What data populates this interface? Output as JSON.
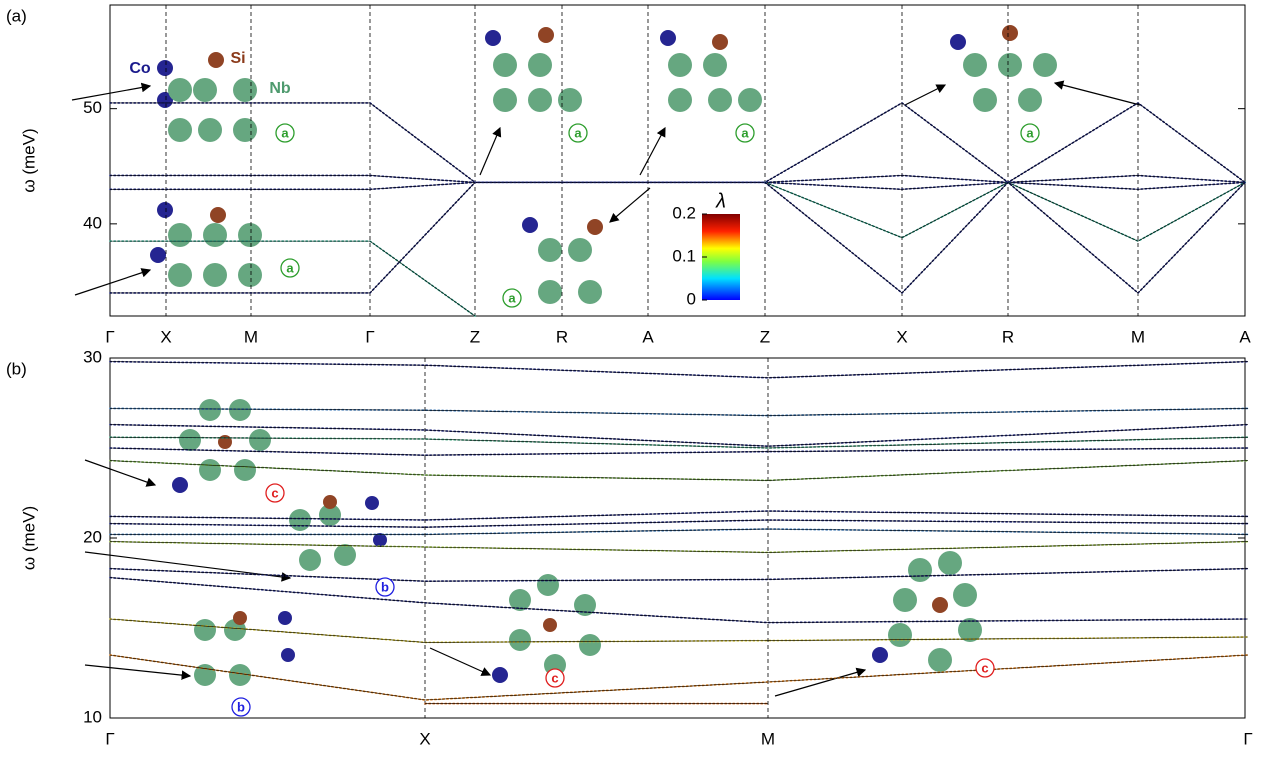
{
  "chart_data": [
    {
      "type": "line",
      "panel_label": "(a)",
      "ylabel": "ω (meV)",
      "categories": [
        "Γ",
        "X",
        "M",
        "Γ",
        "Z",
        "R",
        "A",
        "Z",
        "X",
        "R",
        "M",
        "A"
      ],
      "ylim": [
        32,
        59
      ],
      "yticks": [
        40,
        50
      ],
      "series": [
        {
          "color": "#1a237e",
          "values": [
            50.5,
            50.5,
            50.5,
            50.5,
            43.6,
            43.6,
            43.6,
            43.6,
            50.5,
            43.6,
            50.5,
            43.6
          ]
        },
        {
          "color": "#1a237e",
          "values": [
            44.2,
            44.2,
            44.2,
            44.2,
            43.6,
            43.6,
            43.6,
            43.6,
            44.2,
            43.6,
            44.2,
            43.6
          ]
        },
        {
          "color": "#1a237e",
          "values": [
            43.0,
            43.0,
            43.0,
            43.0,
            43.6,
            43.6,
            43.6,
            43.6,
            43.0,
            43.6,
            43.0,
            43.6
          ]
        },
        {
          "color": "#2aa58a",
          "values": [
            38.5,
            38.5,
            38.5,
            38.5,
            32,
            null,
            null,
            43.6,
            38.8,
            43.6,
            38.5,
            43.6
          ]
        },
        {
          "color": "#1a237e",
          "values": [
            34,
            34,
            34,
            34,
            43.6,
            null,
            null,
            43.6,
            34,
            43.6,
            34,
            43.6
          ]
        }
      ],
      "colorbar": {
        "label": "λ",
        "lim": [
          0,
          0.2
        ],
        "ticks": [
          0,
          0.1,
          0.2
        ]
      },
      "annotations": [
        {
          "text": "Co",
          "color": "#1a1a8c"
        },
        {
          "text": "Si",
          "color": "#8b3a1a"
        },
        {
          "text": "Nb",
          "color": "#4e9a6e"
        },
        {
          "text": "a",
          "color": "#2e9e2e"
        },
        {
          "text": "a",
          "color": "#2e9e2e"
        },
        {
          "text": "a",
          "color": "#2e9e2e"
        },
        {
          "text": "a",
          "color": "#2e9e2e"
        },
        {
          "text": "a",
          "color": "#2e9e2e"
        },
        {
          "text": "a",
          "color": "#2e9e2e"
        }
      ]
    },
    {
      "type": "line",
      "panel_label": "(b)",
      "ylabel": "ω (meV)",
      "categories": [
        "Γ",
        "X",
        "M",
        "Γ"
      ],
      "ylim": [
        10,
        30
      ],
      "yticks": [
        10,
        20,
        30
      ],
      "series": [
        {
          "color": "#1a237e",
          "values": [
            29.8,
            29.6,
            28.9,
            29.8
          ]
        },
        {
          "color": "#2b6cb0",
          "values": [
            27.2,
            27.1,
            26.8,
            27.2
          ]
        },
        {
          "color": "#1a237e",
          "values": [
            26.3,
            26.0,
            25.1,
            26.3
          ]
        },
        {
          "color": "#3aa07a",
          "values": [
            25.6,
            25.5,
            25.0,
            25.6
          ]
        },
        {
          "color": "#1a237e",
          "values": [
            25.0,
            24.6,
            24.8,
            25.0
          ]
        },
        {
          "color": "#6fae3a",
          "values": [
            24.3,
            23.5,
            23.2,
            24.3
          ]
        },
        {
          "color": "#1a237e",
          "values": [
            21.2,
            21.0,
            21.5,
            21.2
          ]
        },
        {
          "color": "#1a237e",
          "values": [
            20.8,
            20.6,
            21.0,
            20.8
          ]
        },
        {
          "color": "#2b6cb0",
          "values": [
            20.2,
            20.2,
            20.5,
            20.2
          ]
        },
        {
          "color": "#9ac23a",
          "values": [
            19.8,
            19.5,
            19.2,
            19.8
          ]
        },
        {
          "color": "#1a237e",
          "values": [
            18.3,
            17.6,
            17.7,
            18.3
          ]
        },
        {
          "color": "#1a237e",
          "values": [
            17.8,
            16.4,
            15.3,
            15.5
          ]
        },
        {
          "color": "#c9b820",
          "values": [
            15.5,
            14.2,
            14.3,
            14.5
          ]
        },
        {
          "color": "#e07a10",
          "values": [
            13.5,
            11.0,
            12.0,
            13.5
          ]
        },
        {
          "color": "#d65f0a",
          "values": [
            null,
            10.8,
            10.8,
            null
          ]
        }
      ],
      "annotations": [
        {
          "text": "c",
          "color": "#e02020"
        },
        {
          "text": "b",
          "color": "#2020e0"
        },
        {
          "text": "b",
          "color": "#2020e0"
        },
        {
          "text": "c",
          "color": "#e02020"
        },
        {
          "text": "c",
          "color": "#e02020"
        }
      ]
    }
  ]
}
